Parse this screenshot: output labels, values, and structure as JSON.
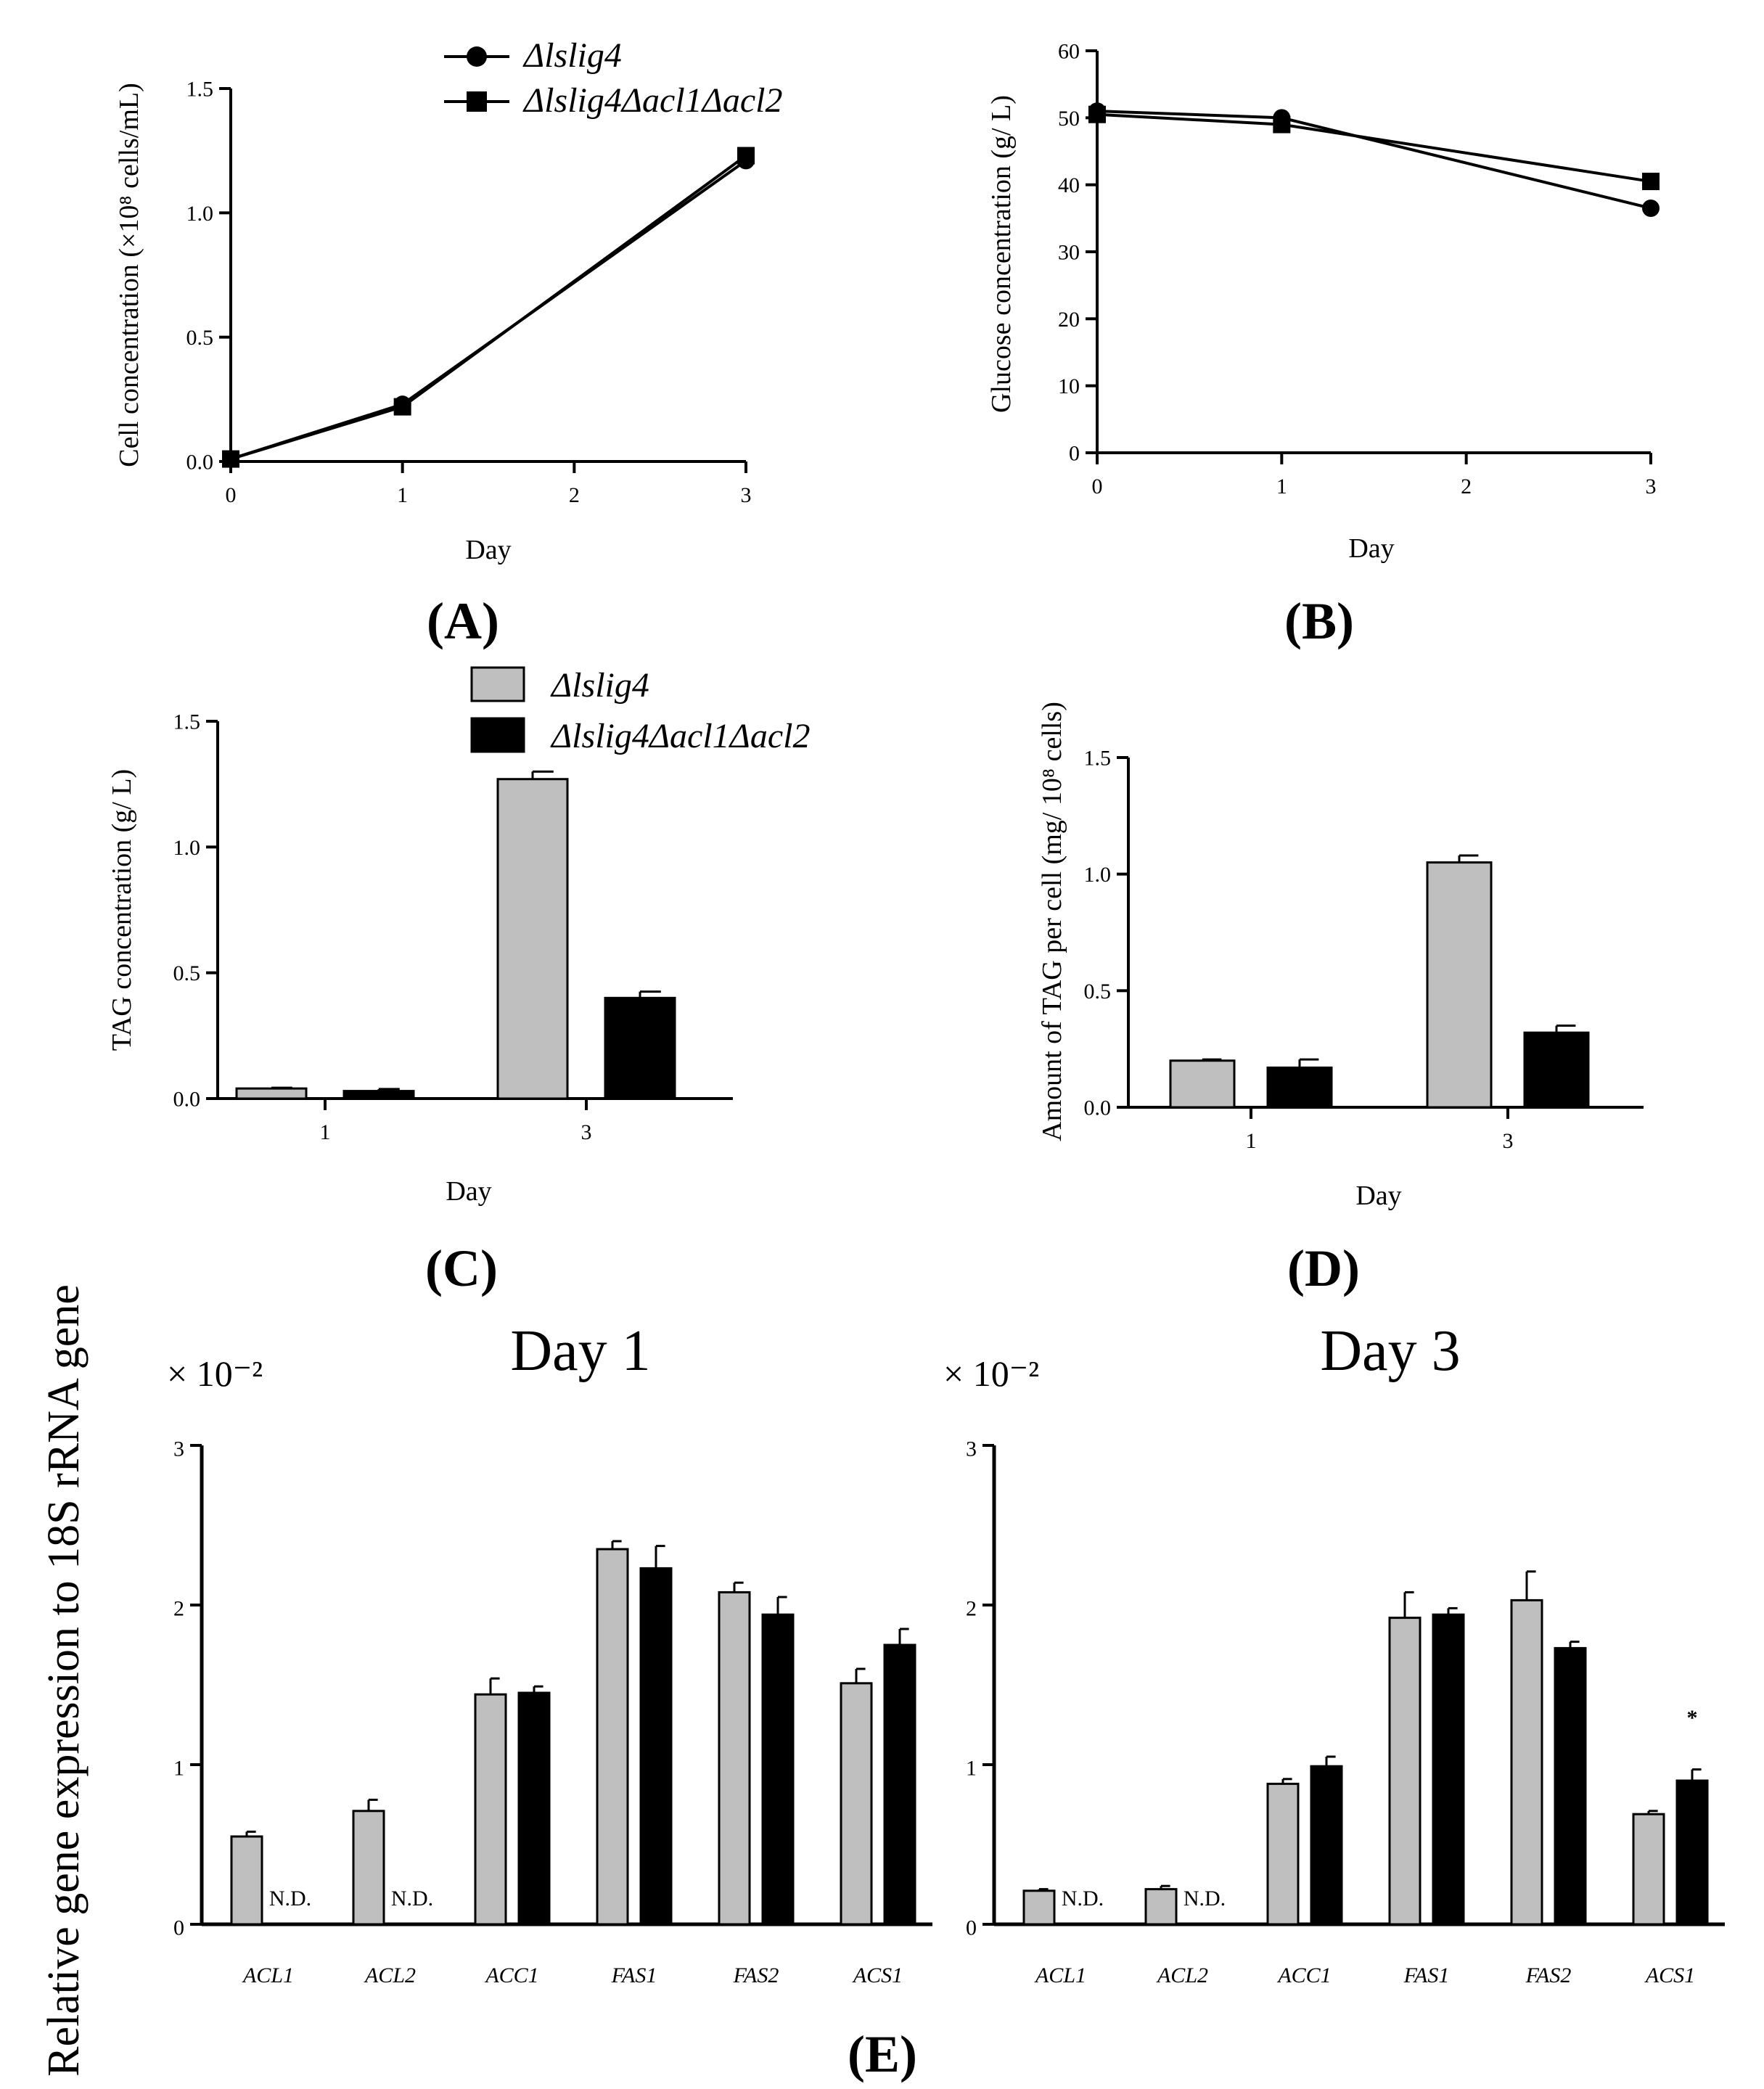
{
  "colors": {
    "strain_a": "#bfbfbf",
    "strain_b": "#000000",
    "axis": "#000000"
  },
  "legend": {
    "strain_a": "Δlslig4",
    "strain_b": "Δlslig4Δacl1Δacl2"
  },
  "chart_data": [
    {
      "id": "A",
      "type": "line",
      "panel_label": "(A)",
      "xlabel": "Day",
      "ylabel": "Cell concentration (×10⁸ cells/mL)",
      "xlim": [
        0,
        3
      ],
      "ylim": [
        0,
        1.5
      ],
      "xticks": [
        "0",
        "1",
        "2",
        "3"
      ],
      "yticks": [
        "0.0",
        "0.5",
        "1.0",
        "1.5"
      ],
      "legend": [
        "Δlslig4",
        "Δlslig4Δacl1Δacl2"
      ],
      "x": [
        0,
        1,
        3
      ],
      "series": [
        {
          "name": "Δlslig4",
          "marker": "circle",
          "values": [
            0.01,
            0.23,
            1.21
          ]
        },
        {
          "name": "Δlslig4Δacl1Δacl2",
          "marker": "square",
          "values": [
            0.01,
            0.22,
            1.23
          ]
        }
      ]
    },
    {
      "id": "B",
      "type": "line",
      "panel_label": "(B)",
      "xlabel": "Day",
      "ylabel": "Glucose concentration (g/ L)",
      "xlim": [
        0,
        3
      ],
      "ylim": [
        0,
        60
      ],
      "xticks": [
        "0",
        "1",
        "2",
        "3"
      ],
      "yticks": [
        "0",
        "10",
        "20",
        "30",
        "40",
        "50",
        "60"
      ],
      "x": [
        0,
        1,
        3
      ],
      "series": [
        {
          "name": "Δlslig4",
          "marker": "circle",
          "values": [
            51,
            50,
            36.5
          ]
        },
        {
          "name": "Δlslig4Δacl1Δacl2",
          "marker": "square",
          "values": [
            50.5,
            49,
            40.5
          ]
        }
      ]
    },
    {
      "id": "C",
      "type": "bar",
      "panel_label": "(C)",
      "xlabel": "Day",
      "ylabel": "TAG concentration (g/ L)",
      "ylim": [
        0,
        1.5
      ],
      "yticks": [
        "0.0",
        "0.5",
        "1.0",
        "1.5"
      ],
      "categories": [
        "1",
        "3"
      ],
      "legend": [
        "Δlslig4",
        "Δlslig4Δacl1Δacl2"
      ],
      "series": [
        {
          "name": "Δlslig4",
          "values": [
            0.04,
            1.27
          ],
          "errors": [
            0.003,
            0.03
          ]
        },
        {
          "name": "Δlslig4Δacl1Δacl2",
          "values": [
            0.03,
            0.4
          ],
          "errors": [
            0.008,
            0.025
          ]
        }
      ]
    },
    {
      "id": "D",
      "type": "bar",
      "panel_label": "(D)",
      "xlabel": "Day",
      "ylabel": "Amount of TAG per cell (mg/ 10⁸ cells)",
      "ylim": [
        0,
        1.5
      ],
      "yticks": [
        "0.0",
        "0.5",
        "1.0",
        "1.5"
      ],
      "categories": [
        "1",
        "3"
      ],
      "series": [
        {
          "name": "Δlslig4",
          "values": [
            0.2,
            1.05
          ],
          "errors": [
            0.005,
            0.03
          ]
        },
        {
          "name": "Δlslig4Δacl1Δacl2",
          "values": [
            0.17,
            0.32
          ],
          "errors": [
            0.035,
            0.03
          ]
        }
      ]
    },
    {
      "id": "E1",
      "type": "bar",
      "title": "Day 1",
      "multiplier": "× 10⁻²",
      "ylabel": "Relative gene expression to 18S rRNA gene",
      "ylim": [
        0,
        3
      ],
      "yticks": [
        "0",
        "1",
        "2",
        "3"
      ],
      "categories": [
        "ACL1",
        "ACL2",
        "ACC1",
        "FAS1",
        "FAS2",
        "ACS1"
      ],
      "series": [
        {
          "name": "Δlslig4",
          "values": [
            0.55,
            0.71,
            1.44,
            2.35,
            2.08,
            1.51
          ],
          "errors": [
            0.03,
            0.07,
            0.1,
            0.05,
            0.06,
            0.09
          ]
        },
        {
          "name": "Δlslig4Δacl1Δacl2",
          "values": [
            null,
            null,
            1.45,
            2.23,
            1.94,
            1.75
          ],
          "errors": [
            null,
            null,
            0.04,
            0.14,
            0.11,
            0.1
          ]
        }
      ],
      "annotations": [
        "N.D.",
        "N.D."
      ]
    },
    {
      "id": "E3",
      "type": "bar",
      "title": "Day 3",
      "multiplier": "× 10⁻²",
      "ylim": [
        0,
        3
      ],
      "yticks": [
        "0",
        "1",
        "2",
        "3"
      ],
      "categories": [
        "ACL1",
        "ACL2",
        "ACC1",
        "FAS1",
        "FAS2",
        "ACS1"
      ],
      "series": [
        {
          "name": "Δlslig4",
          "values": [
            0.21,
            0.22,
            0.88,
            1.92,
            2.03,
            0.69
          ],
          "errors": [
            0.01,
            0.02,
            0.03,
            0.16,
            0.18,
            0.02
          ]
        },
        {
          "name": "Δlslig4Δacl1Δacl2",
          "values": [
            null,
            null,
            0.99,
            1.94,
            1.73,
            0.9
          ],
          "errors": [
            null,
            null,
            0.06,
            0.04,
            0.04,
            0.07
          ]
        }
      ],
      "annotations": [
        "N.D.",
        "N.D.",
        "*"
      ],
      "panel_label": "(E)"
    }
  ]
}
